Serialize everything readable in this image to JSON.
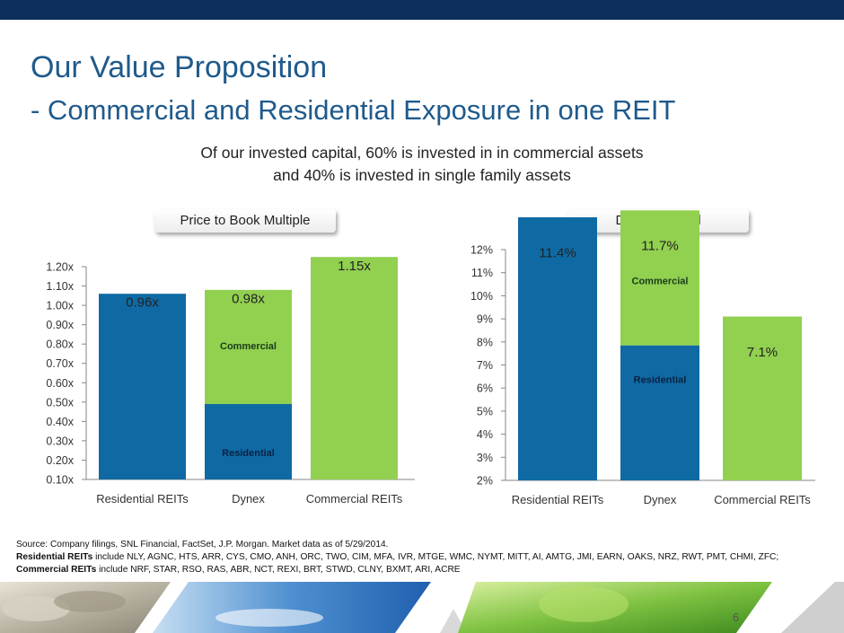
{
  "header": {
    "title_line1": "Our Value Proposition",
    "title_line2": "- Commercial and Residential Exposure in one REIT",
    "subtitle_line1": "Of our invested capital, 60% is invested in in commercial assets",
    "subtitle_line2": "and 40% is invested in single family assets"
  },
  "colors": {
    "residential": "#0f6aa4",
    "commercial": "#92d050",
    "title": "#1f5a8c",
    "top_bar": "#0d2f5e"
  },
  "chart_data": [
    {
      "type": "bar",
      "title": "Price to Book Multiple",
      "categories": [
        "Residential REITs",
        "Dynex",
        "Commercial REITs"
      ],
      "series": [
        {
          "name": "Residential",
          "values": [
            0.96,
            0.39,
            null
          ]
        },
        {
          "name": "Commercial",
          "values": [
            null,
            0.59,
            1.15
          ]
        }
      ],
      "totals": [
        0.96,
        0.98,
        1.15
      ],
      "data_labels": [
        "0.96x",
        "0.98x",
        "1.15x"
      ],
      "yticks": [
        "0.10x",
        "0.20x",
        "0.30x",
        "0.40x",
        "0.50x",
        "0.60x",
        "0.70x",
        "0.80x",
        "0.90x",
        "1.00x",
        "1.10x",
        "1.20x"
      ],
      "ylim": [
        0.1,
        1.2
      ],
      "grid": false
    },
    {
      "type": "bar",
      "title": "Dividend Yield",
      "categories": [
        "Residential REITs",
        "Dynex",
        "Commercial REITs"
      ],
      "series": [
        {
          "name": "Residential",
          "values": [
            11.4,
            5.85,
            null
          ]
        },
        {
          "name": "Commercial",
          "values": [
            null,
            5.85,
            7.1
          ]
        }
      ],
      "totals": [
        11.4,
        11.7,
        7.1
      ],
      "data_labels": [
        "11.4%",
        "11.7%",
        "7.1%"
      ],
      "yticks": [
        "2%",
        "3%",
        "4%",
        "5%",
        "6%",
        "7%",
        "8%",
        "9%",
        "10%",
        "11%",
        "12%"
      ],
      "ylim": [
        2,
        12
      ],
      "grid": false
    }
  ],
  "source": {
    "line1": "Source: Company filings, SNL Financial, FactSet, J.P. Morgan. Market data as of 5/29/2014.",
    "residential_label": "Residential REITs",
    "residential_list": " include NLY, AGNC, HTS, ARR, CYS, CMO, ANH, ORC, TWO, CIM, MFA, IVR, MTGE, WMC, NYMT, MITT, AI, AMTG, JMI, EARN, OAKS, NRZ, RWT, PMT, CHMI, ZFC;",
    "commercial_label": "Commercial  REITs",
    "commercial_list": " include NRF, STAR, RSO, RAS, ABR, NCT, REXI, BRT, STWD, CLNY, BXMT, ARI, ACRE"
  },
  "page_number": "6"
}
